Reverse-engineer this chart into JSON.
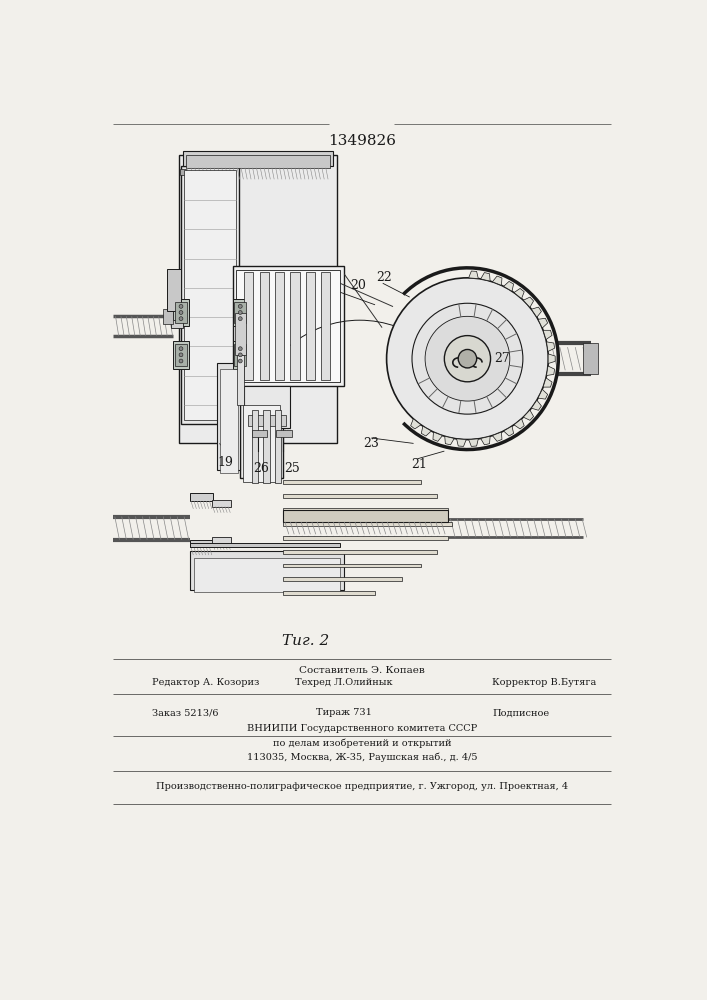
{
  "patent_number": "1349826",
  "fig_label": "Τиг. 2",
  "bg_color": "#f2f0eb",
  "lc": "#1a1a1a",
  "footer": {
    "line1_center": "Составитель Э. Копаев",
    "line2_left": "Редактор А. Козориз",
    "line2_center": "Техред Л.Олийнык",
    "line2_right": "Корректор В.Бутяга",
    "line3_left": "Заказ 5213/6",
    "line3_center": "Тираж 731",
    "line3_right": "Подписное",
    "line4": "ВНИИПИ Государственного комитета СССР",
    "line5": "по делам изобретений и открытий",
    "line6": "113035, Москва, Ж-35, Раушская наб., д. 4/5",
    "line7": "Производственно-полиграфическое предприятие, г. Ужгород, ул. Проектная, 4"
  }
}
